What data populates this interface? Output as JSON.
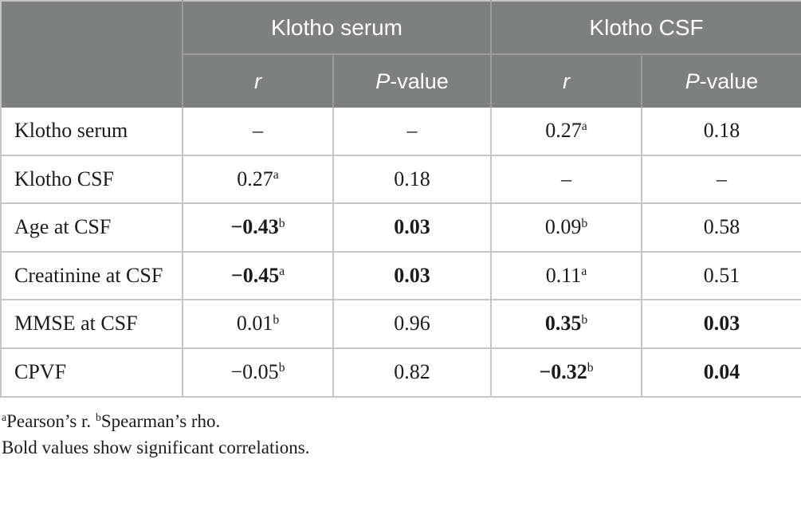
{
  "colors": {
    "header_bg": "#7E7F7F",
    "header_text": "#FFFFFF",
    "header_divider": "#9C9C9C",
    "body_border": "#C5C5C5",
    "body_text": "#1B1B1B"
  },
  "table": {
    "groups": [
      "Klotho serum",
      "Klotho CSF"
    ],
    "subheader": {
      "r": "r",
      "p_italic": "P",
      "p_rest": "-value"
    },
    "rows": [
      {
        "label": "Klotho serum",
        "cells": [
          {
            "value": "–",
            "sup": "",
            "bold": false
          },
          {
            "value": "–",
            "sup": "",
            "bold": false
          },
          {
            "value": "0.27",
            "sup": "a",
            "bold": false
          },
          {
            "value": "0.18",
            "sup": "",
            "bold": false
          }
        ]
      },
      {
        "label": "Klotho CSF",
        "cells": [
          {
            "value": "0.27",
            "sup": "a",
            "bold": false
          },
          {
            "value": "0.18",
            "sup": "",
            "bold": false
          },
          {
            "value": "–",
            "sup": "",
            "bold": false
          },
          {
            "value": "–",
            "sup": "",
            "bold": false
          }
        ]
      },
      {
        "label": "Age at CSF",
        "cells": [
          {
            "value": "−0.43",
            "sup": "b",
            "bold": true
          },
          {
            "value": "0.03",
            "sup": "",
            "bold": true
          },
          {
            "value": "0.09",
            "sup": "b",
            "bold": false
          },
          {
            "value": "0.58",
            "sup": "",
            "bold": false
          }
        ]
      },
      {
        "label": "Creatinine at CSF",
        "cells": [
          {
            "value": "−0.45",
            "sup": "a",
            "bold": true
          },
          {
            "value": "0.03",
            "sup": "",
            "bold": true
          },
          {
            "value": "0.11",
            "sup": "a",
            "bold": false
          },
          {
            "value": "0.51",
            "sup": "",
            "bold": false
          }
        ]
      },
      {
        "label": "MMSE at CSF",
        "cells": [
          {
            "value": "0.01",
            "sup": "b",
            "bold": false
          },
          {
            "value": "0.96",
            "sup": "",
            "bold": false
          },
          {
            "value": "0.35",
            "sup": "b",
            "bold": true
          },
          {
            "value": "0.03",
            "sup": "",
            "bold": true
          }
        ]
      },
      {
        "label": "CPVF",
        "cells": [
          {
            "value": "−0.05",
            "sup": "b",
            "bold": false
          },
          {
            "value": "0.82",
            "sup": "",
            "bold": false
          },
          {
            "value": "−0.32",
            "sup": "b",
            "bold": true
          },
          {
            "value": "0.04",
            "sup": "",
            "bold": true
          }
        ]
      }
    ],
    "footnotes": {
      "line1": [
        {
          "sup": "a",
          "text": ""
        },
        {
          "sup": "",
          "text": "Pearson’s r. "
        },
        {
          "sup": "b",
          "text": ""
        },
        {
          "sup": "",
          "text": "Spearman’s rho."
        }
      ],
      "line2": "Bold values show significant correlations."
    }
  }
}
